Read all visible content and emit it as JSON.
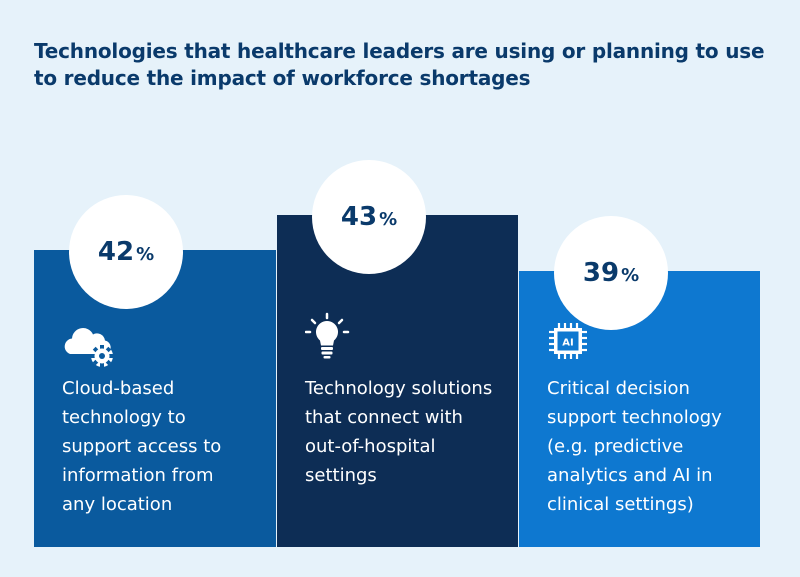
{
  "title": "Technologies that healthcare leaders are using or planning to use to reduce the impact of workforce shortages",
  "percent_sign": "%",
  "chart_data": {
    "type": "bar",
    "title": "Technologies that healthcare leaders are using or planning to use to reduce the impact of workforce shortages",
    "unit": "%",
    "ylim": [
      0,
      50
    ],
    "categories": [
      "Cloud-based technology to support access to information from any location",
      "Technology solutions that connect with out-of-hospital settings",
      "Critical decision support technology (e.g. predictive analytics and AI in clinical settings)"
    ],
    "values": [
      42,
      43,
      39
    ],
    "colors": [
      "#0a5a9e",
      "#0d2d55",
      "#0e78d0"
    ],
    "icons": [
      "cloud-gear-icon",
      "lightbulb-icon",
      "ai-chip-icon"
    ]
  },
  "items": [
    {
      "value": "42",
      "lines": [
        "Cloud-based",
        "technology to",
        "support access to",
        "information from",
        "any location"
      ]
    },
    {
      "value": "43",
      "lines": [
        "Technology solutions",
        "that connect with",
        "out-of-hospital",
        "settings"
      ]
    },
    {
      "value": "39",
      "lines": [
        "Critical decision",
        "support technology",
        "(e.g. predictive",
        "analytics and AI in",
        "clinical settings)"
      ]
    }
  ],
  "ai_chip_label": "AI"
}
